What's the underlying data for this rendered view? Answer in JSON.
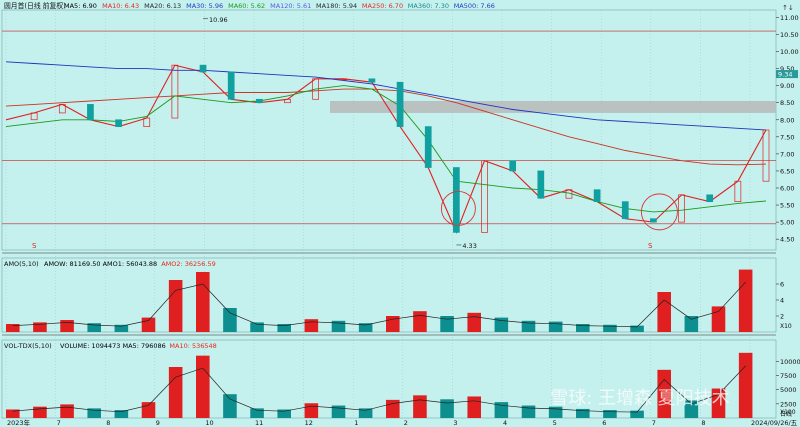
{
  "chart_data": [
    {
      "type": "line",
      "title": "圆月首",
      "title_suffix": "(日线 前复权)",
      "ma_legend": [
        {
          "name": "MA5",
          "value": "6.90",
          "color": "#000000"
        },
        {
          "name": "MA10",
          "value": "6.43",
          "color": "#e8281e"
        },
        {
          "name": "MA20",
          "value": "6.13",
          "color": "#2a2a2a"
        },
        {
          "name": "MA30",
          "value": "5.96",
          "color": "#1a3ec8"
        },
        {
          "name": "MA60",
          "value": "5.62",
          "color": "#1c9a1c"
        },
        {
          "name": "MA120",
          "value": "5.61",
          "color": "#5a5ae6"
        },
        {
          "name": "MA180",
          "value": "5.94",
          "color": "#2a2a2a"
        },
        {
          "name": "MA250",
          "value": "6.70",
          "color": "#e8281e"
        },
        {
          "name": "MA360",
          "value": "7.30",
          "color": "#1a8a8a"
        },
        {
          "name": "MA500",
          "value": "7.66",
          "color": "#1a3ec8"
        }
      ],
      "y_ticks": [
        "11.00",
        "10.50",
        "10.00",
        "9.50",
        "9.00",
        "8.50",
        "8.00",
        "7.50",
        "7.00",
        "6.50",
        "6.00",
        "5.50",
        "5.00",
        "4.50"
      ],
      "ylim": [
        4.3,
        11.1
      ],
      "current_price": "9.34",
      "annotations": {
        "high": "10.96",
        "low": "4.33"
      },
      "series": [
        {
          "name": "close",
          "values": [
            8.0,
            8.2,
            8.45,
            8.0,
            7.8,
            8.05,
            9.6,
            9.4,
            8.6,
            8.5,
            8.6,
            9.2,
            9.2,
            9.1,
            7.8,
            6.6,
            4.7,
            6.8,
            6.5,
            5.7,
            5.95,
            5.6,
            5.1,
            5.0,
            5.8,
            5.6,
            6.2,
            7.7
          ]
        },
        {
          "name": "MA-long",
          "values": [
            9.7,
            9.65,
            9.6,
            9.55,
            9.5,
            9.5,
            9.45,
            9.45,
            9.4,
            9.35,
            9.3,
            9.25,
            9.15,
            9.05,
            8.9,
            8.75,
            8.6,
            8.45,
            8.3,
            8.2,
            8.1,
            8.0,
            7.95,
            7.9,
            7.85,
            7.8,
            7.75,
            7.7
          ]
        },
        {
          "name": "MA-mid",
          "values": [
            8.4,
            8.45,
            8.5,
            8.55,
            8.6,
            8.65,
            8.7,
            8.75,
            8.8,
            8.8,
            8.8,
            8.85,
            8.9,
            8.9,
            8.85,
            8.7,
            8.5,
            8.25,
            8.0,
            7.75,
            7.5,
            7.3,
            7.1,
            6.95,
            6.8,
            6.7,
            6.68,
            6.7
          ]
        },
        {
          "name": "MA60",
          "values": [
            7.8,
            7.9,
            8.0,
            8.0,
            7.95,
            8.1,
            8.7,
            8.6,
            8.5,
            8.55,
            8.7,
            8.9,
            9.0,
            8.9,
            8.4,
            7.4,
            6.2,
            6.1,
            6.0,
            5.95,
            5.85,
            5.6,
            5.4,
            5.3,
            5.35,
            5.45,
            5.55,
            5.62
          ]
        }
      ]
    },
    {
      "type": "bar",
      "title": "AMO(5,10)",
      "legend": [
        {
          "name": "AMOW",
          "value": "81169.50",
          "color": "#000000"
        },
        {
          "name": "AMO1",
          "value": "56043.88",
          "color": "#000000"
        },
        {
          "name": "AMO2",
          "value": "36256.59",
          "color": "#e8281e"
        }
      ],
      "y_ticks": [
        "6",
        "4",
        "2"
      ],
      "ylim": [
        0,
        8
      ],
      "unit": "X10",
      "values": [
        1.0,
        1.2,
        1.5,
        1.1,
        0.9,
        1.8,
        6.5,
        7.5,
        3.0,
        1.2,
        1.0,
        1.6,
        1.4,
        1.1,
        2.0,
        2.6,
        2.0,
        2.4,
        1.8,
        1.4,
        1.3,
        1.0,
        0.9,
        0.8,
        5.0,
        2.0,
        3.2,
        7.8
      ]
    },
    {
      "type": "bar",
      "title": "VOL-TDX(5,10)",
      "legend": [
        {
          "name": "VOLUME",
          "value": "1094473",
          "color": "#000000"
        },
        {
          "name": "MA5",
          "value": "796086",
          "color": "#000000"
        },
        {
          "name": "MA10",
          "value": "536548",
          "color": "#e8281e"
        }
      ],
      "y_ticks": [
        "10000",
        "7500",
        "5000",
        "2500"
      ],
      "ylim": [
        0,
        12000
      ],
      "unit": "X100",
      "values": [
        1500,
        2000,
        2400,
        1700,
        1400,
        2800,
        9000,
        11000,
        4200,
        1700,
        1500,
        2600,
        2200,
        1700,
        3200,
        4000,
        3300,
        3800,
        2800,
        2200,
        2000,
        1600,
        1400,
        1300,
        8500,
        3100,
        5200,
        11500
      ]
    }
  ],
  "x_ticks": [
    "2023年",
    "7",
    "8",
    "9",
    "10",
    "11",
    "12",
    "1",
    "2",
    "3",
    "4",
    "5",
    "6",
    "7",
    "8",
    "2024/09/26/五",
    "日线"
  ],
  "watermark": "雪球: 王增森 夏阳技术",
  "toolbar_glyph": "↑↓",
  "marker_labels": [
    "S",
    "S"
  ]
}
